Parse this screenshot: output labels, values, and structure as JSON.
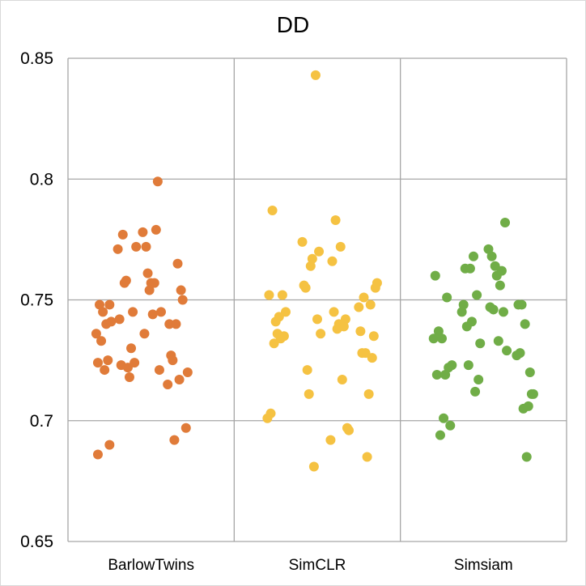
{
  "chart_data": {
    "type": "scatter",
    "title": "DD",
    "xlabel": "",
    "ylabel": "",
    "categories": [
      "BarlowTwins",
      "SimCLR",
      "Simsiam"
    ],
    "ylim": [
      0.65,
      0.85
    ],
    "yticks": [
      0.65,
      0.7,
      0.75,
      0.8,
      0.85
    ],
    "ytick_labels": [
      "0.65",
      "0.7",
      "0.75",
      "0.8",
      "0.85"
    ],
    "grid": true,
    "legend": "none",
    "series": [
      {
        "category": "BarlowTwins",
        "color": "#e07b39",
        "points": [
          [
            -0.33,
            0.736
          ],
          [
            -0.32,
            0.724
          ],
          [
            -0.31,
            0.748
          ],
          [
            -0.3,
            0.733
          ],
          [
            -0.29,
            0.745
          ],
          [
            -0.28,
            0.721
          ],
          [
            -0.27,
            0.74
          ],
          [
            -0.26,
            0.725
          ],
          [
            -0.25,
            0.748
          ],
          [
            -0.24,
            0.741
          ],
          [
            -0.32,
            0.686
          ],
          [
            -0.25,
            0.69
          ],
          [
            -0.2,
            0.771
          ],
          [
            -0.19,
            0.742
          ],
          [
            -0.18,
            0.723
          ],
          [
            -0.17,
            0.777
          ],
          [
            -0.16,
            0.757
          ],
          [
            -0.15,
            0.758
          ],
          [
            -0.14,
            0.722
          ],
          [
            -0.13,
            0.718
          ],
          [
            -0.12,
            0.73
          ],
          [
            -0.11,
            0.745
          ],
          [
            -0.1,
            0.724
          ],
          [
            -0.09,
            0.772
          ],
          [
            -0.05,
            0.778
          ],
          [
            -0.04,
            0.736
          ],
          [
            -0.03,
            0.772
          ],
          [
            -0.02,
            0.761
          ],
          [
            -0.01,
            0.754
          ],
          [
            0.0,
            0.757
          ],
          [
            0.01,
            0.744
          ],
          [
            0.02,
            0.757
          ],
          [
            0.03,
            0.779
          ],
          [
            0.04,
            0.799
          ],
          [
            0.05,
            0.721
          ],
          [
            0.06,
            0.745
          ],
          [
            0.1,
            0.715
          ],
          [
            0.11,
            0.74
          ],
          [
            0.12,
            0.727
          ],
          [
            0.13,
            0.725
          ],
          [
            0.14,
            0.692
          ],
          [
            0.15,
            0.74
          ],
          [
            0.16,
            0.765
          ],
          [
            0.17,
            0.717
          ],
          [
            0.18,
            0.754
          ],
          [
            0.19,
            0.75
          ],
          [
            0.21,
            0.697
          ],
          [
            0.22,
            0.72
          ]
        ]
      },
      {
        "category": "SimCLR",
        "color": "#f5c242",
        "points": [
          [
            -0.3,
            0.701
          ],
          [
            -0.29,
            0.752
          ],
          [
            -0.28,
            0.703
          ],
          [
            -0.27,
            0.787
          ],
          [
            -0.26,
            0.732
          ],
          [
            -0.25,
            0.741
          ],
          [
            -0.24,
            0.736
          ],
          [
            -0.23,
            0.743
          ],
          [
            -0.22,
            0.734
          ],
          [
            -0.21,
            0.752
          ],
          [
            -0.2,
            0.735
          ],
          [
            -0.19,
            0.745
          ],
          [
            -0.09,
            0.774
          ],
          [
            -0.08,
            0.756
          ],
          [
            -0.07,
            0.755
          ],
          [
            -0.06,
            0.721
          ],
          [
            -0.05,
            0.711
          ],
          [
            -0.04,
            0.764
          ],
          [
            -0.03,
            0.767
          ],
          [
            -0.02,
            0.681
          ],
          [
            -0.01,
            0.843
          ],
          [
            0.0,
            0.742
          ],
          [
            0.01,
            0.77
          ],
          [
            0.02,
            0.736
          ],
          [
            0.08,
            0.692
          ],
          [
            0.09,
            0.766
          ],
          [
            0.1,
            0.745
          ],
          [
            0.11,
            0.783
          ],
          [
            0.12,
            0.738
          ],
          [
            0.13,
            0.74
          ],
          [
            0.14,
            0.772
          ],
          [
            0.15,
            0.717
          ],
          [
            0.16,
            0.739
          ],
          [
            0.17,
            0.742
          ],
          [
            0.18,
            0.697
          ],
          [
            0.19,
            0.696
          ],
          [
            0.25,
            0.747
          ],
          [
            0.26,
            0.737
          ],
          [
            0.27,
            0.728
          ],
          [
            0.28,
            0.751
          ],
          [
            0.29,
            0.728
          ],
          [
            0.3,
            0.685
          ],
          [
            0.31,
            0.711
          ],
          [
            0.32,
            0.748
          ],
          [
            0.33,
            0.726
          ],
          [
            0.34,
            0.735
          ],
          [
            0.35,
            0.755
          ],
          [
            0.36,
            0.757
          ]
        ]
      },
      {
        "category": "Simsiam",
        "color": "#70ad47",
        "points": [
          [
            -0.3,
            0.734
          ],
          [
            -0.29,
            0.76
          ],
          [
            -0.28,
            0.719
          ],
          [
            -0.27,
            0.737
          ],
          [
            -0.26,
            0.694
          ],
          [
            -0.25,
            0.734
          ],
          [
            -0.24,
            0.701
          ],
          [
            -0.23,
            0.719
          ],
          [
            -0.22,
            0.751
          ],
          [
            -0.21,
            0.722
          ],
          [
            -0.2,
            0.698
          ],
          [
            -0.19,
            0.723
          ],
          [
            -0.13,
            0.745
          ],
          [
            -0.12,
            0.748
          ],
          [
            -0.11,
            0.763
          ],
          [
            -0.1,
            0.739
          ],
          [
            -0.09,
            0.723
          ],
          [
            -0.08,
            0.763
          ],
          [
            -0.07,
            0.741
          ],
          [
            -0.06,
            0.768
          ],
          [
            -0.05,
            0.712
          ],
          [
            -0.04,
            0.752
          ],
          [
            -0.03,
            0.717
          ],
          [
            -0.02,
            0.732
          ],
          [
            0.03,
            0.771
          ],
          [
            0.04,
            0.747
          ],
          [
            0.05,
            0.768
          ],
          [
            0.06,
            0.746
          ],
          [
            0.07,
            0.764
          ],
          [
            0.08,
            0.76
          ],
          [
            0.09,
            0.733
          ],
          [
            0.1,
            0.756
          ],
          [
            0.11,
            0.762
          ],
          [
            0.12,
            0.745
          ],
          [
            0.13,
            0.782
          ],
          [
            0.14,
            0.729
          ],
          [
            0.2,
            0.727
          ],
          [
            0.21,
            0.748
          ],
          [
            0.22,
            0.728
          ],
          [
            0.23,
            0.748
          ],
          [
            0.24,
            0.705
          ],
          [
            0.25,
            0.74
          ],
          [
            0.26,
            0.685
          ],
          [
            0.27,
            0.706
          ],
          [
            0.28,
            0.72
          ],
          [
            0.29,
            0.711
          ],
          [
            0.3,
            0.711
          ]
        ]
      }
    ]
  }
}
